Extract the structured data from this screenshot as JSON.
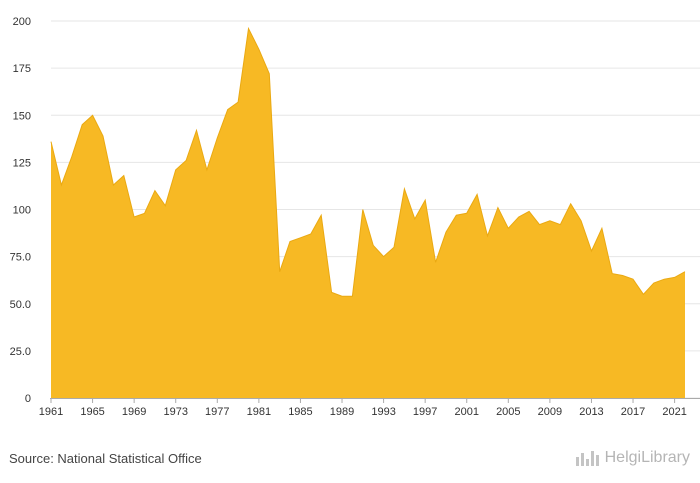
{
  "chart_data": {
    "type": "area",
    "title": "",
    "xlabel": "",
    "ylabel": "",
    "color": "#f7b924",
    "grid": true,
    "ylim": [
      0,
      200
    ],
    "y_ticks": [
      "0",
      "25.0",
      "50.0",
      "75.0",
      "100",
      "125",
      "150",
      "175",
      "200"
    ],
    "x_ticks": [
      "1961",
      "1965",
      "1969",
      "1973",
      "1977",
      "1981",
      "1985",
      "1989",
      "1993",
      "1997",
      "2001",
      "2005",
      "2009",
      "2013",
      "2017",
      "2021"
    ],
    "x": [
      1961,
      1962,
      1963,
      1964,
      1965,
      1966,
      1967,
      1968,
      1969,
      1970,
      1971,
      1972,
      1973,
      1974,
      1975,
      1976,
      1977,
      1978,
      1979,
      1980,
      1981,
      1982,
      1983,
      1984,
      1985,
      1986,
      1987,
      1988,
      1989,
      1990,
      1991,
      1992,
      1993,
      1994,
      1995,
      1996,
      1997,
      1998,
      1999,
      2000,
      2001,
      2002,
      2003,
      2004,
      2005,
      2006,
      2007,
      2008,
      2009,
      2010,
      2011,
      2012,
      2013,
      2014,
      2015,
      2016,
      2017,
      2018,
      2019,
      2020,
      2021,
      2022
    ],
    "values": [
      136,
      113,
      128,
      145,
      150,
      139,
      113,
      118,
      96,
      98,
      110,
      102,
      121,
      126,
      142,
      121,
      138,
      153,
      157,
      196,
      185,
      172,
      67,
      83,
      85,
      87,
      97,
      56,
      54,
      54,
      100,
      81,
      75,
      80,
      111,
      95,
      105,
      72,
      88,
      97,
      98,
      108,
      86,
      101,
      90,
      96,
      99,
      92,
      94,
      92,
      103,
      94,
      78,
      90,
      66,
      65,
      63,
      55,
      61,
      63,
      64,
      67
    ]
  },
  "footer": {
    "source": "Source: National Statistical Office",
    "brand": "HelgiLibrary"
  },
  "icons": {
    "brand_logo": "bar-chart-icon"
  }
}
